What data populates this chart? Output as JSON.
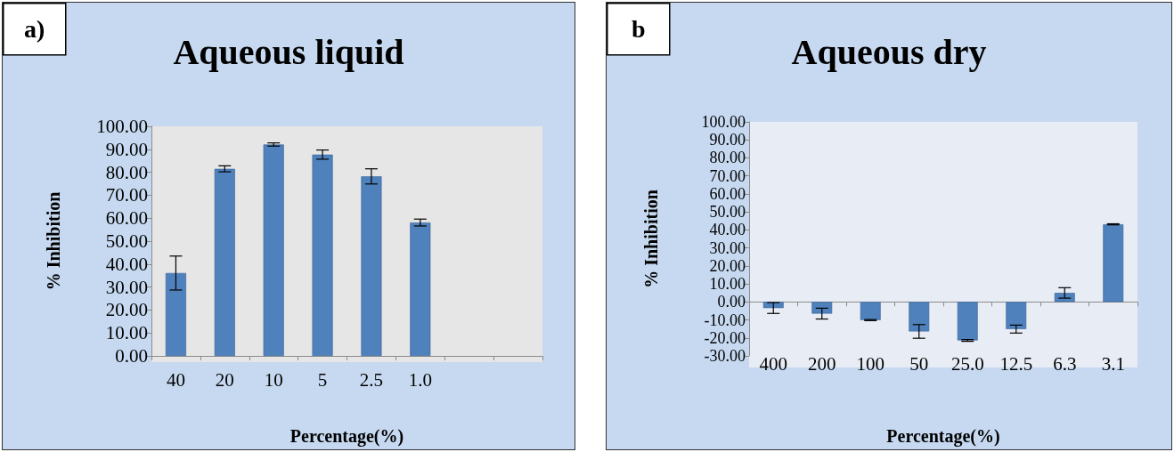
{
  "chart_data": [
    {
      "type": "bar",
      "title": "Aqueous liquid",
      "xlabel": "Percentage(%)",
      "ylabel": "% Inhibition",
      "annotations": [
        "a)"
      ],
      "color": "#4f81bd",
      "categories": [
        "40",
        "20",
        "10",
        "5",
        "2.5",
        "1.0",
        null,
        null
      ],
      "values": [
        36.1,
        81.5,
        92.1,
        87.7,
        78.2,
        58.1,
        null,
        null
      ],
      "errors": [
        7.4,
        1.3,
        0.7,
        2,
        3.3,
        1.5,
        null,
        null
      ],
      "ylim": [
        0,
        100
      ],
      "yticks": [
        {
          "value": 0,
          "label": "0.00"
        },
        {
          "value": 10,
          "label": "10.00"
        },
        {
          "value": 20,
          "label": "20.00"
        },
        {
          "value": 30,
          "label": "30.00"
        },
        {
          "value": 40,
          "label": "40.00"
        },
        {
          "value": 50,
          "label": "50.00"
        },
        {
          "value": 60,
          "label": "60.00"
        },
        {
          "value": 70,
          "label": "70.00"
        },
        {
          "value": 80,
          "label": "80.00"
        },
        {
          "value": 90,
          "label": "90.00"
        },
        {
          "value": 100,
          "label": "100.00"
        }
      ]
    },
    {
      "type": "bar",
      "title": "Aqueous dry",
      "xlabel": "Percentage(%)",
      "ylabel": "% Inhibition",
      "annotations": [
        "b"
      ],
      "color": "#4f81bd",
      "categories": [
        "400",
        "200",
        "100",
        "50",
        "25.0",
        "12.5",
        "6.3",
        "3.1"
      ],
      "values": [
        -3.4,
        -6.5,
        -10.1,
        -16.4,
        -21.4,
        -15.1,
        5,
        43.1
      ],
      "errors": [
        3,
        3,
        0.3,
        3.8,
        0.5,
        2.2,
        2.9,
        0.3
      ],
      "ylim": [
        -30,
        100
      ],
      "yticks": [
        {
          "value": -30,
          "label": "-30.00"
        },
        {
          "value": -20,
          "label": "-20.00"
        },
        {
          "value": -10,
          "label": "-10.00"
        },
        {
          "value": 0,
          "label": "0.00"
        },
        {
          "value": 10,
          "label": "10.00"
        },
        {
          "value": 20,
          "label": "20.00"
        },
        {
          "value": 30,
          "label": "30.00"
        },
        {
          "value": 40,
          "label": "40.00"
        },
        {
          "value": 50,
          "label": "50.00"
        },
        {
          "value": 60,
          "label": "60.00"
        },
        {
          "value": 70,
          "label": "70.00"
        },
        {
          "value": 80,
          "label": "80.00"
        },
        {
          "value": 90,
          "label": "90.00"
        },
        {
          "value": 100,
          "label": "100.00"
        }
      ]
    }
  ]
}
